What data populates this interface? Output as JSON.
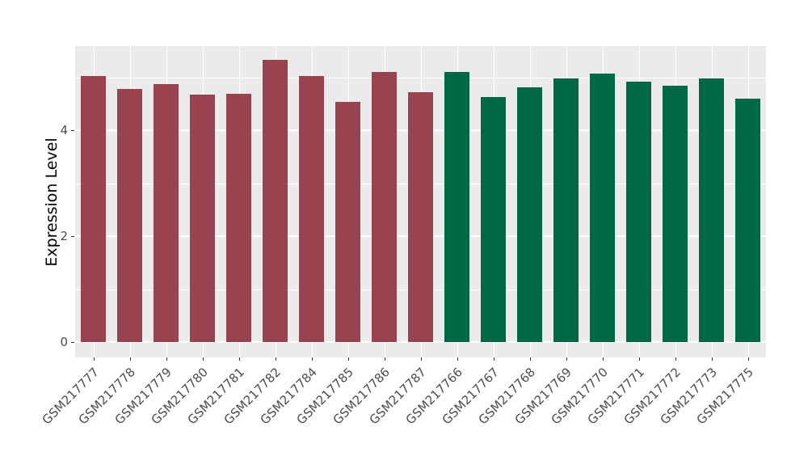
{
  "figure": {
    "background_color": "#FFFFFF",
    "panel_background_color": "#EBEBEB",
    "gridline_color": "#FFFFFF",
    "axis_text_color": "#4D4D4D",
    "axis_title_color": "#000000"
  },
  "chart_data": {
    "type": "bar",
    "title": "",
    "xlabel": "",
    "ylabel": "Expression Level",
    "categories": [
      "GSM217777",
      "GSM217778",
      "GSM217779",
      "GSM217780",
      "GSM217781",
      "GSM217782",
      "GSM217784",
      "GSM217785",
      "GSM217786",
      "GSM217787",
      "GSM217766",
      "GSM217767",
      "GSM217768",
      "GSM217769",
      "GSM217770",
      "GSM217771",
      "GSM217772",
      "GSM217773",
      "GSM217775"
    ],
    "values": [
      5.02,
      4.78,
      4.87,
      4.67,
      4.68,
      5.33,
      5.03,
      4.53,
      5.1,
      4.72,
      5.1,
      4.63,
      4.81,
      4.98,
      5.07,
      4.91,
      4.84,
      4.98,
      4.59
    ],
    "groups": [
      "A",
      "A",
      "A",
      "A",
      "A",
      "A",
      "A",
      "A",
      "A",
      "A",
      "B",
      "B",
      "B",
      "B",
      "B",
      "B",
      "B",
      "B",
      "B"
    ],
    "group_colors": {
      "A": "#9A4350",
      "B": "#006847"
    },
    "ylim": [
      0,
      5.6
    ],
    "yticks": [
      0,
      2,
      4
    ],
    "minor_grid_values": [
      1,
      3,
      5
    ],
    "major_grid_values": [
      0,
      2,
      4
    ],
    "x_tick_rotation_deg": 45,
    "grid": true,
    "legend": "none"
  }
}
